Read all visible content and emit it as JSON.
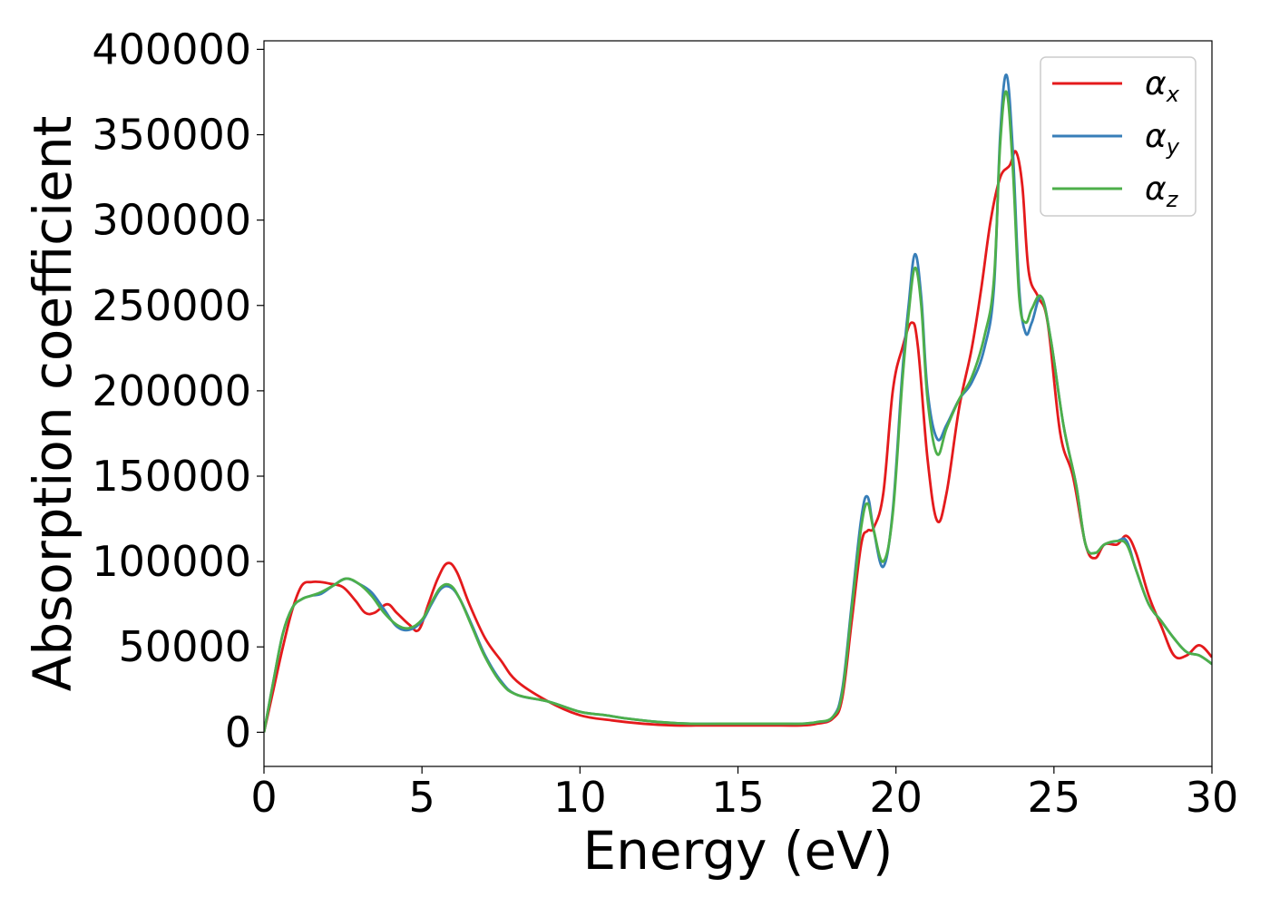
{
  "chart_data": {
    "type": "line",
    "xlabel": "Energy (eV)",
    "ylabel": "Absorption coefficient",
    "xlim": [
      0,
      30
    ],
    "ylim": [
      -20000,
      405000
    ],
    "xticks": [
      0,
      5,
      10,
      15,
      20,
      25,
      30
    ],
    "xtick_labels": [
      "0",
      "5",
      "10",
      "15",
      "20",
      "25",
      "30"
    ],
    "yticks": [
      0,
      50000,
      100000,
      150000,
      200000,
      250000,
      300000,
      350000,
      400000
    ],
    "ytick_labels": [
      "0",
      "50000",
      "100000",
      "150000",
      "200000",
      "250000",
      "300000",
      "350000",
      "400000"
    ],
    "grid": false,
    "legend_position": "top-right",
    "series": [
      {
        "name": "α",
        "subscript": "x",
        "color": "#e41a1c",
        "x": [
          0,
          0.3,
          0.6,
          0.9,
          1.2,
          1.5,
          1.8,
          2.1,
          2.5,
          2.9,
          3.2,
          3.5,
          3.9,
          4.2,
          4.6,
          4.9,
          5.2,
          5.5,
          5.8,
          6.1,
          6.5,
          7.0,
          7.5,
          8.0,
          9.0,
          10.0,
          11.0,
          12.0,
          13.0,
          14.0,
          15.0,
          16.0,
          17.0,
          17.5,
          18.0,
          18.3,
          18.6,
          18.9,
          19.1,
          19.3,
          19.6,
          19.9,
          20.2,
          20.5,
          20.7,
          21.0,
          21.3,
          21.6,
          22.0,
          22.4,
          22.7,
          23.0,
          23.3,
          23.6,
          23.8,
          24.0,
          24.2,
          24.5,
          24.8,
          25.2,
          25.6,
          26.0,
          26.3,
          26.6,
          27.0,
          27.3,
          27.6,
          28.0,
          28.4,
          28.8,
          29.2,
          29.6,
          30.0
        ],
        "y": [
          0,
          25000,
          50000,
          72000,
          86000,
          88000,
          88000,
          87000,
          85000,
          77000,
          70000,
          70000,
          75000,
          70000,
          63000,
          60000,
          75000,
          90000,
          99000,
          94000,
          75000,
          55000,
          42000,
          30000,
          18000,
          10000,
          7000,
          5000,
          4000,
          4000,
          4000,
          4000,
          4000,
          5000,
          8000,
          20000,
          65000,
          110000,
          118000,
          120000,
          140000,
          200000,
          225000,
          240000,
          225000,
          160000,
          124000,
          140000,
          190000,
          225000,
          260000,
          300000,
          325000,
          332000,
          340000,
          320000,
          270000,
          255000,
          240000,
          175000,
          150000,
          110000,
          102000,
          110000,
          110000,
          115000,
          105000,
          80000,
          62000,
          45000,
          45000,
          51000,
          44000
        ]
      },
      {
        "name": "α",
        "subscript": "y",
        "color": "#377eb8",
        "x": [
          0,
          0.3,
          0.6,
          0.9,
          1.2,
          1.5,
          1.8,
          2.2,
          2.6,
          3.0,
          3.4,
          3.8,
          4.2,
          4.6,
          5.0,
          5.3,
          5.6,
          5.9,
          6.2,
          6.6,
          7.0,
          7.5,
          8.0,
          9.0,
          10.0,
          10.8,
          11.5,
          12.5,
          13.5,
          14.5,
          15.5,
          16.5,
          17.0,
          17.5,
          18.0,
          18.3,
          18.6,
          18.9,
          19.1,
          19.3,
          19.6,
          19.9,
          20.2,
          20.4,
          20.6,
          20.8,
          21.0,
          21.3,
          21.6,
          22.0,
          22.4,
          22.8,
          23.1,
          23.3,
          23.5,
          23.7,
          23.9,
          24.1,
          24.3,
          24.6,
          24.9,
          25.3,
          25.7,
          26.0,
          26.3,
          26.6,
          27.0,
          27.3,
          27.6,
          28.0,
          28.4,
          28.8,
          29.2,
          29.6,
          30.0
        ],
        "y": [
          0,
          30000,
          58000,
          73000,
          78000,
          80000,
          81000,
          86000,
          90000,
          87000,
          82000,
          72000,
          62000,
          60000,
          65000,
          75000,
          84000,
          85000,
          78000,
          62000,
          45000,
          30000,
          22000,
          18000,
          12000,
          10000,
          8000,
          6000,
          5000,
          5000,
          5000,
          5000,
          5000,
          6000,
          9000,
          25000,
          75000,
          125000,
          138000,
          118000,
          97000,
          130000,
          210000,
          250000,
          280000,
          255000,
          200000,
          172000,
          180000,
          195000,
          205000,
          225000,
          260000,
          350000,
          385000,
          340000,
          260000,
          234000,
          240000,
          255000,
          230000,
          180000,
          145000,
          110000,
          105000,
          110000,
          112000,
          112000,
          95000,
          75000,
          65000,
          55000,
          47000,
          45000,
          40000
        ]
      },
      {
        "name": "α",
        "subscript": "z",
        "color": "#4daf4a",
        "x": [
          0,
          0.3,
          0.6,
          0.9,
          1.2,
          1.5,
          1.8,
          2.2,
          2.6,
          3.0,
          3.4,
          3.8,
          4.2,
          4.6,
          5.0,
          5.3,
          5.6,
          5.9,
          6.2,
          6.6,
          7.0,
          7.5,
          8.0,
          9.0,
          10.0,
          10.8,
          11.5,
          12.5,
          13.5,
          14.5,
          15.5,
          16.5,
          17.0,
          17.5,
          18.0,
          18.3,
          18.6,
          18.9,
          19.1,
          19.3,
          19.6,
          19.9,
          20.2,
          20.4,
          20.6,
          20.8,
          21.0,
          21.3,
          21.6,
          22.0,
          22.4,
          22.8,
          23.1,
          23.3,
          23.5,
          23.7,
          23.9,
          24.1,
          24.3,
          24.6,
          24.9,
          25.3,
          25.7,
          26.0,
          26.3,
          26.6,
          27.0,
          27.3,
          27.6,
          28.0,
          28.4,
          28.8,
          29.2,
          29.6,
          30.0
        ],
        "y": [
          0,
          30000,
          58000,
          73000,
          78000,
          80000,
          82000,
          86000,
          90000,
          87000,
          80000,
          70000,
          63000,
          61000,
          66000,
          76000,
          85000,
          86000,
          78000,
          61000,
          44000,
          29000,
          22000,
          18000,
          12000,
          10000,
          8000,
          6000,
          5000,
          5000,
          5000,
          5000,
          5000,
          6000,
          9000,
          23000,
          72000,
          120000,
          134000,
          118000,
          100000,
          128000,
          205000,
          245000,
          272000,
          250000,
          195000,
          163000,
          178000,
          195000,
          208000,
          232000,
          265000,
          345000,
          375000,
          330000,
          255000,
          240000,
          248000,
          255000,
          230000,
          180000,
          145000,
          110000,
          105000,
          110000,
          112000,
          110000,
          95000,
          75000,
          65000,
          55000,
          47000,
          45000,
          40000
        ]
      }
    ]
  }
}
